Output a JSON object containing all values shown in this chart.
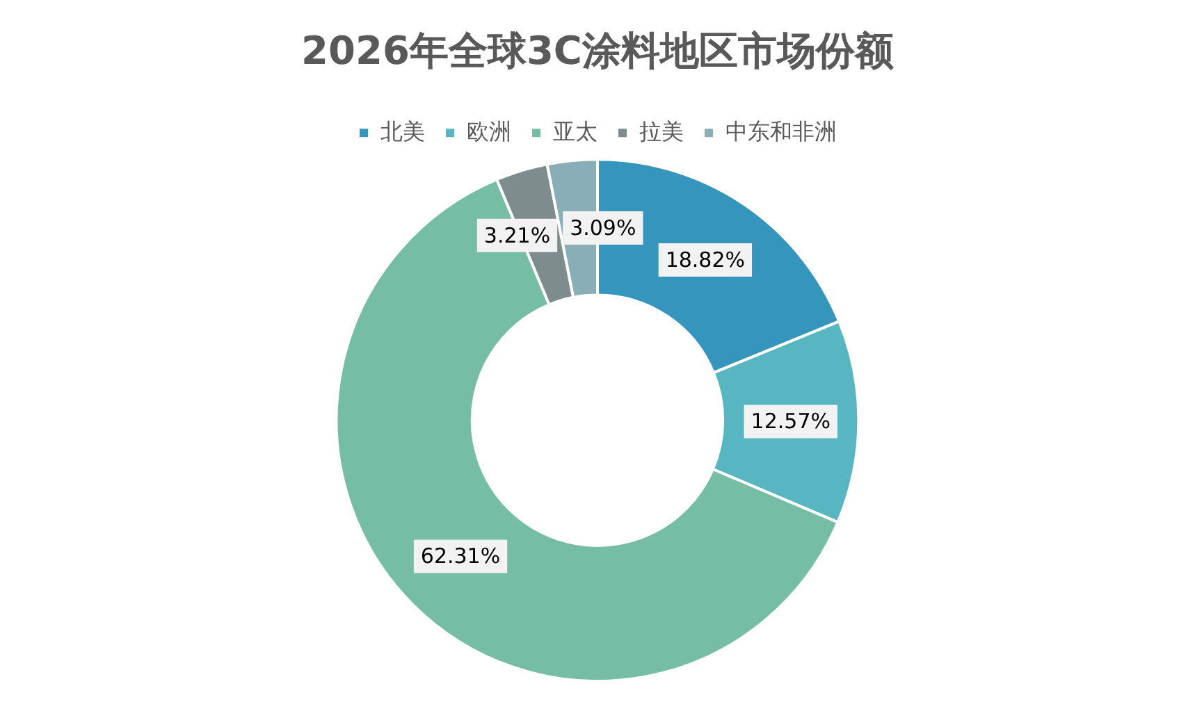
{
  "chart_data": {
    "type": "donut",
    "title": "2026年全球3C涂料地区市场份额",
    "categories": [
      "北美",
      "欧洲",
      "亚太",
      "拉美",
      "中东和非洲"
    ],
    "values": [
      18.82,
      12.57,
      62.31,
      3.21,
      3.09
    ],
    "colors": [
      "#3595bd",
      "#57b6c1",
      "#76bda6",
      "#7f8c8d",
      "#8aaeb8"
    ],
    "value_labels": [
      "18.82%",
      "12.57%",
      "62.31%",
      "3.21%",
      "3.09%"
    ],
    "legend": "top"
  }
}
